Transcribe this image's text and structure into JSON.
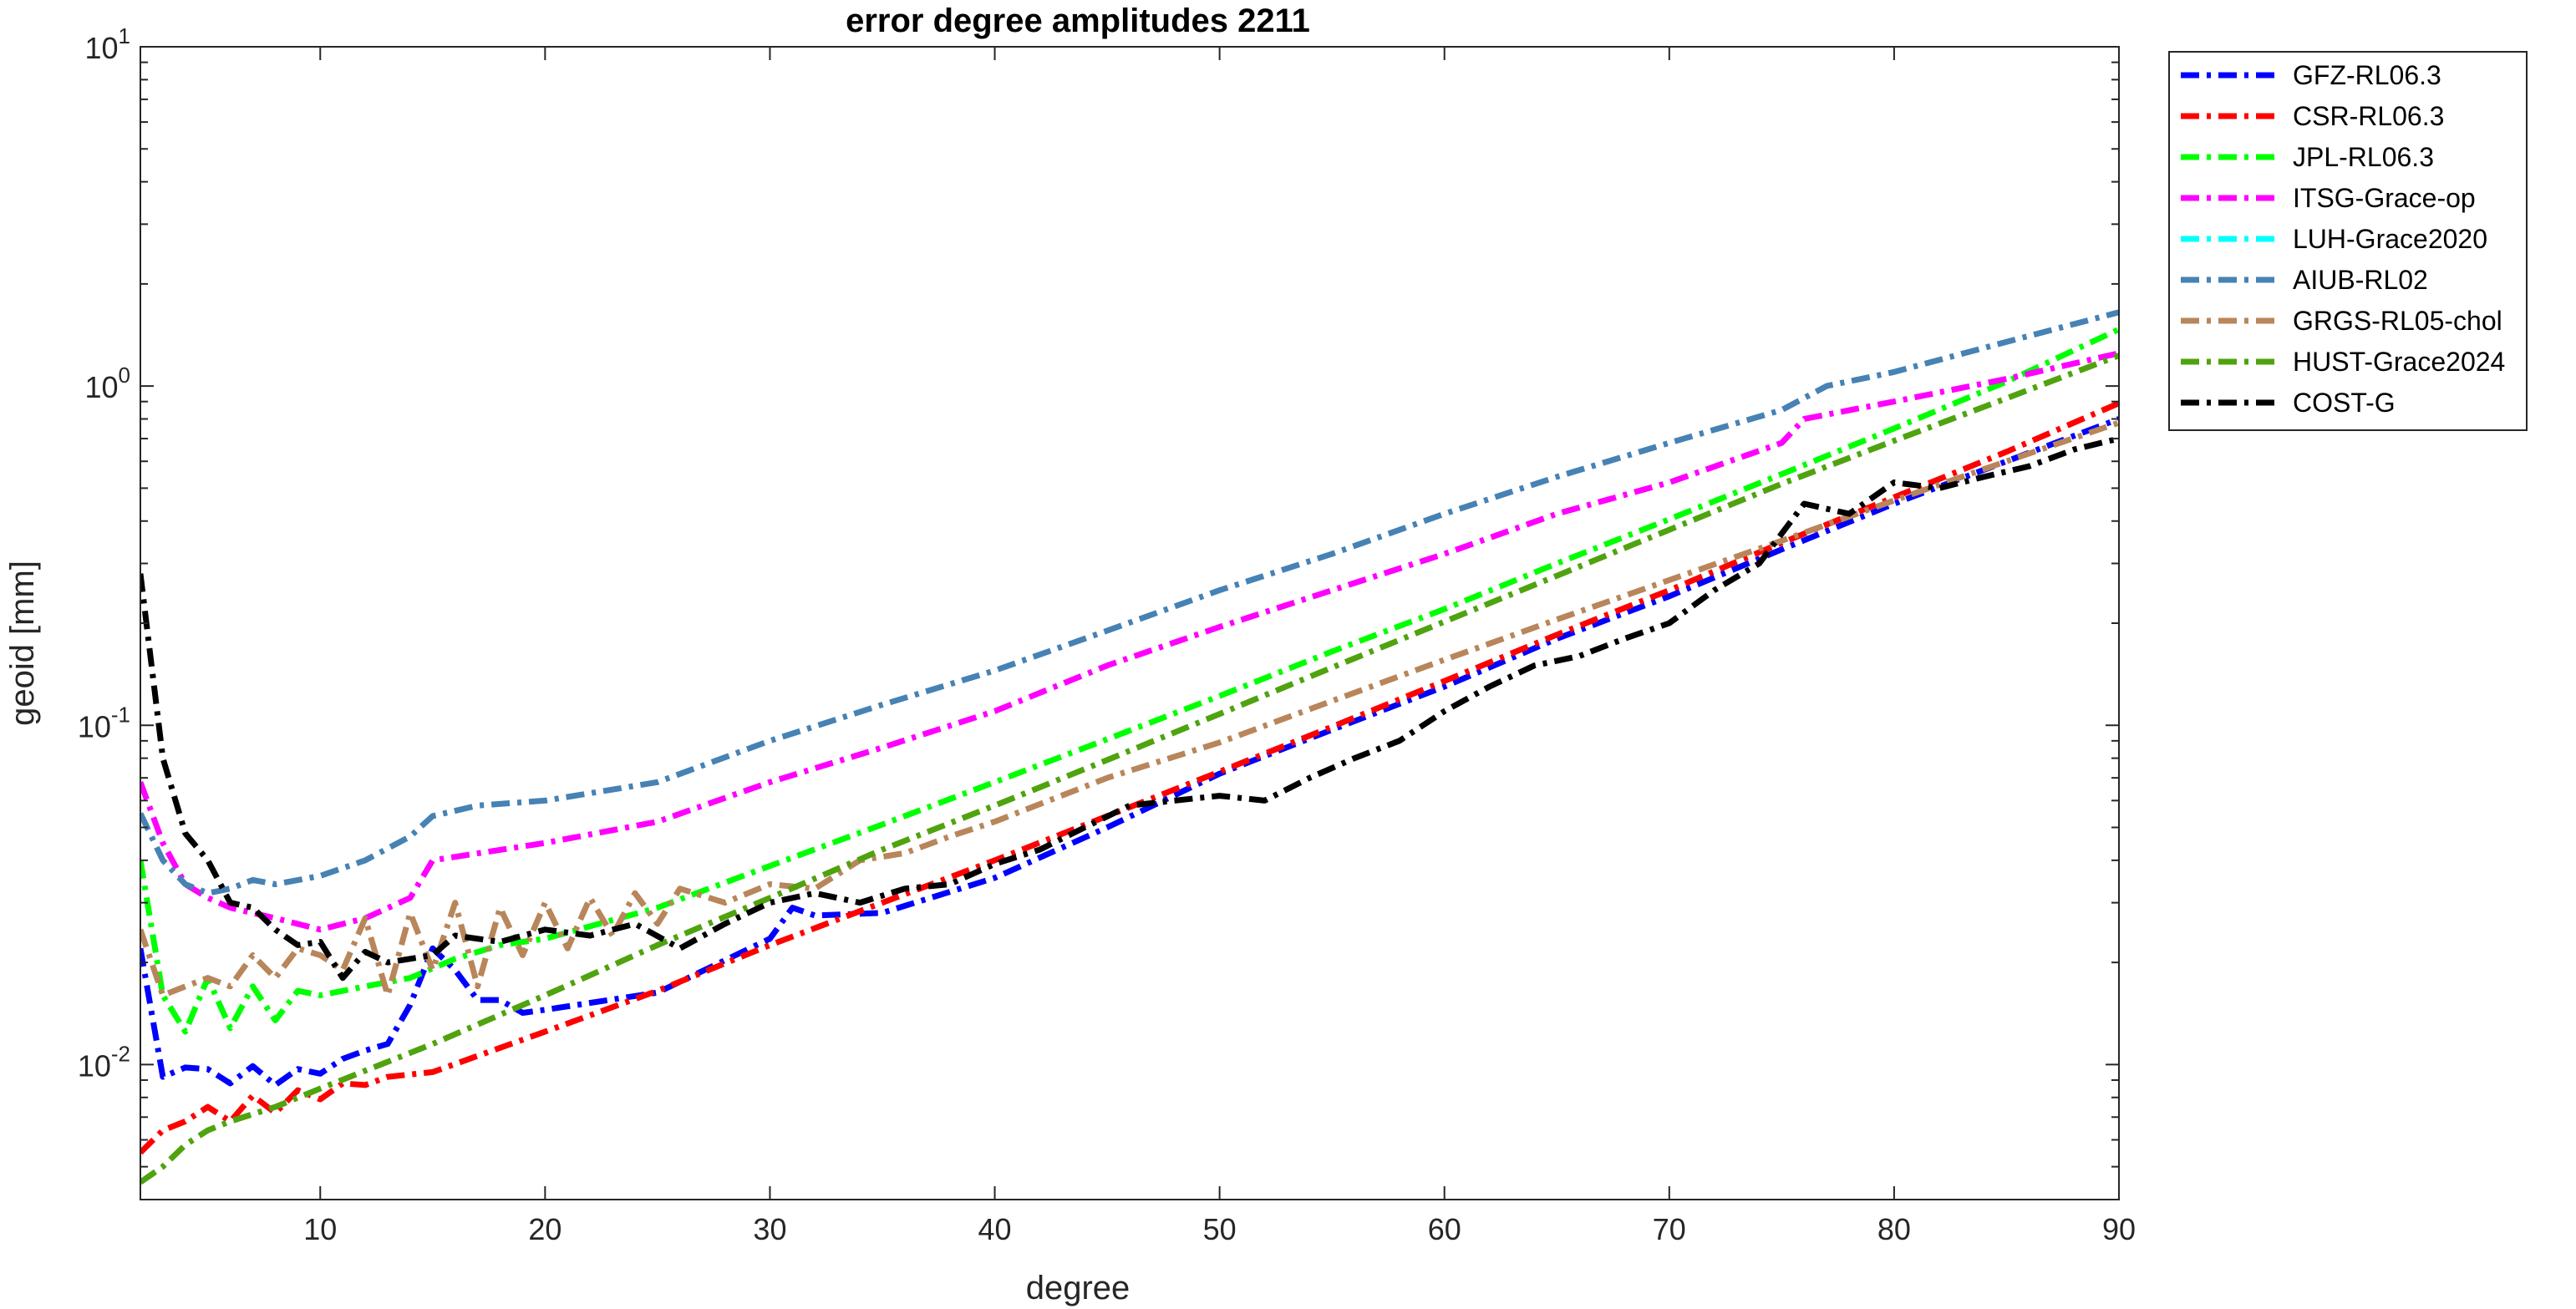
{
  "chart_data": {
    "type": "line",
    "title": "error degree amplitudes 2211",
    "xlabel": "degree",
    "ylabel": "geoid [mm]",
    "xlim": [
      2,
      90
    ],
    "ylim": [
      0.004,
      10
    ],
    "yscale": "log",
    "xticks": [
      10,
      20,
      30,
      40,
      50,
      60,
      70,
      80,
      90
    ],
    "yticks": [
      {
        "value": 0.01,
        "base": "10",
        "exp": "-2"
      },
      {
        "value": 0.1,
        "base": "10",
        "exp": "-1"
      },
      {
        "value": 1,
        "base": "10",
        "exp": "0"
      },
      {
        "value": 10,
        "base": "10",
        "exp": "1"
      }
    ],
    "grid": false,
    "legend_position": "outside-top-right",
    "line_style": "dash-dot",
    "series": [
      {
        "name": "GFZ-RL06.3",
        "color": "#0000ff",
        "points": [
          [
            2,
            0.022
          ],
          [
            3,
            0.0092
          ],
          [
            4,
            0.0098
          ],
          [
            5,
            0.0097
          ],
          [
            6,
            0.0088
          ],
          [
            7,
            0.0099
          ],
          [
            8,
            0.0087
          ],
          [
            9,
            0.0097
          ],
          [
            10,
            0.0094
          ],
          [
            11,
            0.0104
          ],
          [
            12,
            0.011
          ],
          [
            13,
            0.0115
          ],
          [
            14,
            0.015
          ],
          [
            15,
            0.022
          ],
          [
            16,
            0.019
          ],
          [
            17,
            0.0155
          ],
          [
            18,
            0.0155
          ],
          [
            19,
            0.0142
          ],
          [
            20,
            0.0145
          ],
          [
            25,
            0.0163
          ],
          [
            30,
            0.0235
          ],
          [
            31,
            0.029
          ],
          [
            32,
            0.0275
          ],
          [
            35,
            0.028
          ],
          [
            40,
            0.0355
          ],
          [
            45,
            0.05
          ],
          [
            50,
            0.072
          ],
          [
            55,
            0.097
          ],
          [
            60,
            0.13
          ],
          [
            65,
            0.18
          ],
          [
            70,
            0.24
          ],
          [
            75,
            0.33
          ],
          [
            80,
            0.45
          ],
          [
            85,
            0.6
          ],
          [
            90,
            0.8
          ]
        ]
      },
      {
        "name": "CSR-RL06.3",
        "color": "#ff0000",
        "points": [
          [
            2,
            0.0055
          ],
          [
            3,
            0.0064
          ],
          [
            4,
            0.0068
          ],
          [
            5,
            0.0075
          ],
          [
            6,
            0.0068
          ],
          [
            7,
            0.0081
          ],
          [
            8,
            0.0072
          ],
          [
            9,
            0.0084
          ],
          [
            10,
            0.0079
          ],
          [
            11,
            0.0088
          ],
          [
            12,
            0.0087
          ],
          [
            13,
            0.0092
          ],
          [
            15,
            0.0095
          ],
          [
            20,
            0.0125
          ],
          [
            25,
            0.0165
          ],
          [
            30,
            0.0225
          ],
          [
            35,
            0.03
          ],
          [
            40,
            0.04
          ],
          [
            45,
            0.054
          ],
          [
            50,
            0.073
          ],
          [
            55,
            0.099
          ],
          [
            60,
            0.135
          ],
          [
            65,
            0.185
          ],
          [
            70,
            0.25
          ],
          [
            75,
            0.345
          ],
          [
            80,
            0.47
          ],
          [
            85,
            0.64
          ],
          [
            90,
            0.89
          ]
        ]
      },
      {
        "name": "JPL-RL06.3",
        "color": "#00ff00",
        "points": [
          [
            2,
            0.04
          ],
          [
            3,
            0.016
          ],
          [
            4,
            0.0125
          ],
          [
            5,
            0.018
          ],
          [
            6,
            0.0128
          ],
          [
            7,
            0.017
          ],
          [
            8,
            0.0135
          ],
          [
            9,
            0.0165
          ],
          [
            10,
            0.016
          ],
          [
            12,
            0.017
          ],
          [
            14,
            0.018
          ],
          [
            16,
            0.0205
          ],
          [
            18,
            0.0225
          ],
          [
            20,
            0.0235
          ],
          [
            25,
            0.029
          ],
          [
            30,
            0.0385
          ],
          [
            35,
            0.051
          ],
          [
            40,
            0.068
          ],
          [
            45,
            0.091
          ],
          [
            50,
            0.122
          ],
          [
            55,
            0.165
          ],
          [
            60,
            0.22
          ],
          [
            65,
            0.3
          ],
          [
            70,
            0.405
          ],
          [
            75,
            0.55
          ],
          [
            80,
            0.75
          ],
          [
            85,
            1.03
          ],
          [
            90,
            1.47
          ]
        ]
      },
      {
        "name": "ITSG-Grace-op",
        "color": "#ff00ff",
        "points": [
          [
            2,
            0.068
          ],
          [
            3,
            0.045
          ],
          [
            4,
            0.034
          ],
          [
            5,
            0.031
          ],
          [
            6,
            0.029
          ],
          [
            8,
            0.027
          ],
          [
            10,
            0.025
          ],
          [
            12,
            0.027
          ],
          [
            14,
            0.031
          ],
          [
            15,
            0.04
          ],
          [
            20,
            0.045
          ],
          [
            25,
            0.052
          ],
          [
            30,
            0.068
          ],
          [
            35,
            0.086
          ],
          [
            40,
            0.11
          ],
          [
            45,
            0.15
          ],
          [
            50,
            0.195
          ],
          [
            55,
            0.25
          ],
          [
            60,
            0.32
          ],
          [
            65,
            0.42
          ],
          [
            70,
            0.52
          ],
          [
            75,
            0.68
          ],
          [
            76,
            0.8
          ],
          [
            80,
            0.9
          ],
          [
            85,
            1.05
          ],
          [
            90,
            1.25
          ]
        ]
      },
      {
        "name": "LUH-Grace2020",
        "color": "#00ffff",
        "points": []
      },
      {
        "name": "AIUB-RL02",
        "color": "#4682b4",
        "points": [
          [
            2,
            0.055
          ],
          [
            3,
            0.04
          ],
          [
            4,
            0.034
          ],
          [
            5,
            0.032
          ],
          [
            6,
            0.033
          ],
          [
            7,
            0.035
          ],
          [
            8,
            0.034
          ],
          [
            10,
            0.036
          ],
          [
            12,
            0.04
          ],
          [
            14,
            0.047
          ],
          [
            15,
            0.054
          ],
          [
            17,
            0.058
          ],
          [
            20,
            0.06
          ],
          [
            25,
            0.068
          ],
          [
            30,
            0.09
          ],
          [
            35,
            0.115
          ],
          [
            40,
            0.145
          ],
          [
            45,
            0.19
          ],
          [
            50,
            0.25
          ],
          [
            55,
            0.32
          ],
          [
            60,
            0.42
          ],
          [
            65,
            0.54
          ],
          [
            70,
            0.68
          ],
          [
            75,
            0.85
          ],
          [
            77,
            1.0
          ],
          [
            80,
            1.1
          ],
          [
            85,
            1.35
          ],
          [
            90,
            1.65
          ]
        ]
      },
      {
        "name": "GRGS-RL05-chol",
        "color": "#b8865a",
        "points": [
          [
            2,
            0.025
          ],
          [
            3,
            0.016
          ],
          [
            4,
            0.017
          ],
          [
            5,
            0.018
          ],
          [
            6,
            0.017
          ],
          [
            7,
            0.021
          ],
          [
            8,
            0.018
          ],
          [
            9,
            0.022
          ],
          [
            10,
            0.021
          ],
          [
            11,
            0.019
          ],
          [
            12,
            0.027
          ],
          [
            13,
            0.016
          ],
          [
            14,
            0.028
          ],
          [
            15,
            0.019
          ],
          [
            16,
            0.03
          ],
          [
            17,
            0.017
          ],
          [
            18,
            0.029
          ],
          [
            19,
            0.021
          ],
          [
            20,
            0.03
          ],
          [
            21,
            0.022
          ],
          [
            22,
            0.031
          ],
          [
            23,
            0.024
          ],
          [
            24,
            0.032
          ],
          [
            25,
            0.026
          ],
          [
            26,
            0.033
          ],
          [
            28,
            0.03
          ],
          [
            30,
            0.034
          ],
          [
            32,
            0.033
          ],
          [
            34,
            0.04
          ],
          [
            36,
            0.042
          ],
          [
            38,
            0.047
          ],
          [
            40,
            0.052
          ],
          [
            45,
            0.07
          ],
          [
            50,
            0.089
          ],
          [
            55,
            0.118
          ],
          [
            60,
            0.156
          ],
          [
            65,
            0.205
          ],
          [
            70,
            0.268
          ],
          [
            75,
            0.35
          ],
          [
            80,
            0.46
          ],
          [
            85,
            0.6
          ],
          [
            90,
            0.78
          ]
        ]
      },
      {
        "name": "HUST-Grace2024",
        "color": "#4fa30f",
        "points": [
          [
            2,
            0.0045
          ],
          [
            3,
            0.005
          ],
          [
            4,
            0.0058
          ],
          [
            5,
            0.0064
          ],
          [
            6,
            0.0068
          ],
          [
            8,
            0.0075
          ],
          [
            10,
            0.0085
          ],
          [
            15,
            0.0115
          ],
          [
            20,
            0.016
          ],
          [
            25,
            0.0225
          ],
          [
            30,
            0.031
          ],
          [
            35,
            0.043
          ],
          [
            40,
            0.058
          ],
          [
            45,
            0.079
          ],
          [
            50,
            0.108
          ],
          [
            55,
            0.148
          ],
          [
            60,
            0.202
          ],
          [
            65,
            0.276
          ],
          [
            70,
            0.377
          ],
          [
            75,
            0.515
          ],
          [
            80,
            0.69
          ],
          [
            85,
            0.92
          ],
          [
            90,
            1.23
          ]
        ]
      },
      {
        "name": "COST-G",
        "color": "#000000",
        "points": [
          [
            2,
            0.28
          ],
          [
            3,
            0.08
          ],
          [
            4,
            0.048
          ],
          [
            5,
            0.04
          ],
          [
            6,
            0.03
          ],
          [
            7,
            0.029
          ],
          [
            8,
            0.025
          ],
          [
            9,
            0.0225
          ],
          [
            10,
            0.023
          ],
          [
            11,
            0.018
          ],
          [
            12,
            0.0215
          ],
          [
            13,
            0.02
          ],
          [
            14,
            0.0205
          ],
          [
            15,
            0.021
          ],
          [
            16,
            0.024
          ],
          [
            18,
            0.023
          ],
          [
            20,
            0.025
          ],
          [
            22,
            0.024
          ],
          [
            24,
            0.026
          ],
          [
            26,
            0.022
          ],
          [
            28,
            0.026
          ],
          [
            30,
            0.03
          ],
          [
            32,
            0.032
          ],
          [
            34,
            0.03
          ],
          [
            36,
            0.033
          ],
          [
            38,
            0.034
          ],
          [
            40,
            0.039
          ],
          [
            42,
            0.043
          ],
          [
            44,
            0.05
          ],
          [
            46,
            0.058
          ],
          [
            48,
            0.06
          ],
          [
            50,
            0.062
          ],
          [
            52,
            0.06
          ],
          [
            54,
            0.07
          ],
          [
            56,
            0.08
          ],
          [
            58,
            0.09
          ],
          [
            60,
            0.11
          ],
          [
            62,
            0.13
          ],
          [
            64,
            0.15
          ],
          [
            66,
            0.16
          ],
          [
            68,
            0.18
          ],
          [
            70,
            0.2
          ],
          [
            72,
            0.25
          ],
          [
            74,
            0.3
          ],
          [
            76,
            0.45
          ],
          [
            78,
            0.42
          ],
          [
            80,
            0.52
          ],
          [
            82,
            0.5
          ],
          [
            84,
            0.54
          ],
          [
            86,
            0.58
          ],
          [
            88,
            0.65
          ],
          [
            90,
            0.7
          ]
        ]
      }
    ]
  }
}
